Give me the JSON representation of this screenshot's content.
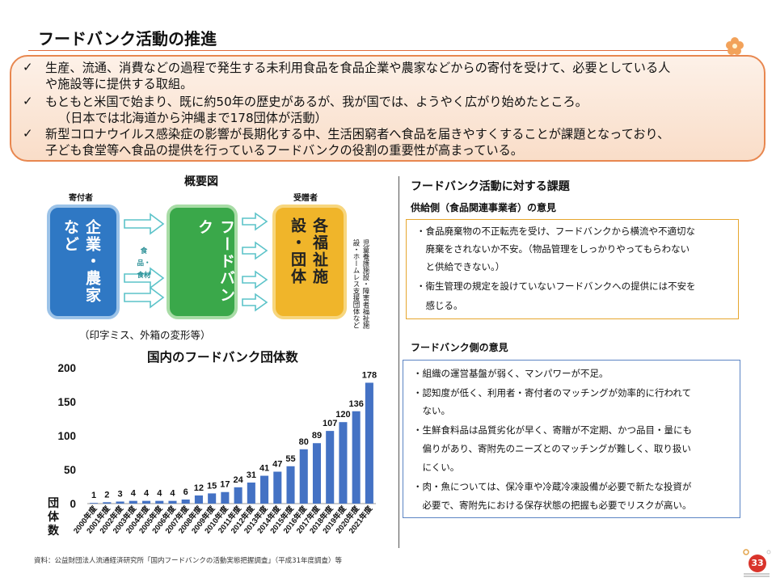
{
  "header": {
    "title": "フードバンク活動の推進"
  },
  "summary": {
    "bullets": [
      {
        "lines": [
          "生産、流通、消費などの過程で発生する未利用食品を食品企業や農家などからの寄付を受けて、必要としている人",
          "や施設等に提供する取組。"
        ]
      },
      {
        "lines": [
          "もともと米国で始まり、既に約50年の歴史があるが、我が国では、ようやく広がり始めたところ。",
          "（日本では北海道から沖縄まで178団体が活動）"
        ]
      },
      {
        "lines": [
          "新型コロナウイルス感染症の影響が長期化する中、生活困窮者へ食品を届きやすくすることが課題となっており、",
          "子ども食堂等へ食品の提供を行っているフードバンクの役割の重要性が高まっている。"
        ]
      }
    ],
    "check_icon": "✓"
  },
  "diagram": {
    "title": "概要図",
    "donor_caption": "寄付者",
    "recipient_caption": "受贈者",
    "donor_box": "企業・農家など",
    "flow_label": "食品・食材",
    "foodbank_box": "フードバンク",
    "recipient_box": "各福祉施設・団体",
    "recipient_note": "児童養護施設・障害者福祉施設・ホームレス支援団体など",
    "note": "（印字ミス、外箱の変形等）",
    "colors": {
      "donor": "#2f78c4",
      "foodbank": "#3aa84a",
      "recipient": "#f0b52a",
      "arrow": "#5cc3c9"
    }
  },
  "chart_data": {
    "type": "bar",
    "title": "国内のフードバンク団体数",
    "ylabel": "団体数",
    "ylim": [
      0,
      200
    ],
    "yticks": [
      0,
      50,
      100,
      150,
      200
    ],
    "categories": [
      "2000年度",
      "2001年度",
      "2002年度",
      "2003年度",
      "2004年度",
      "2005年度",
      "2006年度",
      "2007年度",
      "2008年度",
      "2009年度",
      "2010年度",
      "2011年度",
      "2012年度",
      "2013年度",
      "2014年度",
      "2015年度",
      "2016年度",
      "2017年度",
      "2018年度",
      "2019年度",
      "2020年度",
      "2021年度"
    ],
    "values": [
      1,
      2,
      3,
      4,
      4,
      4,
      4,
      6,
      12,
      15,
      17,
      24,
      31,
      41,
      47,
      55,
      80,
      89,
      107,
      120,
      136,
      178
    ],
    "bar_color": "#4472c4"
  },
  "source_note": "資料：公益財団法人流通経済研究所「国内フードバンクの活動実態把握調査」（平成31年度調査）等",
  "issues": {
    "title": "フードバンク活動に対する課題",
    "supply": {
      "title": "供給側（食品関連事業者）の意見",
      "lines": [
        "・食品廃棄物の不正転売を受け、フードバンクから横流や不適切な",
        "　廃棄をされないか不安。（物品管理をしっかりやってもらわない",
        "　と供給できない。）",
        "・衛生管理の規定を設けていないフードバンクへの提供には不安を",
        "　感じる。"
      ]
    },
    "foodbank": {
      "title": "フードバンク側の意見",
      "lines": [
        "・組織の運営基盤が弱く、マンパワーが不足。",
        "・認知度が低く、利用者・寄付者のマッチングが効率的に行われて",
        "　ない。",
        "・生鮮食料品は品質劣化が早く、寄贈が不定期、かつ品目・量にも",
        "　偏りがあり、寄附先のニーズとのマッチングが難しく、取り扱い",
        "　にくい。",
        "・肉・魚については、保冷車や冷蔵冷凍設備が必要で新たな投資が",
        "　必要で、寄附先における保存状態の把握も必要でリスクが高い。"
      ]
    }
  },
  "page": {
    "number": "33"
  }
}
